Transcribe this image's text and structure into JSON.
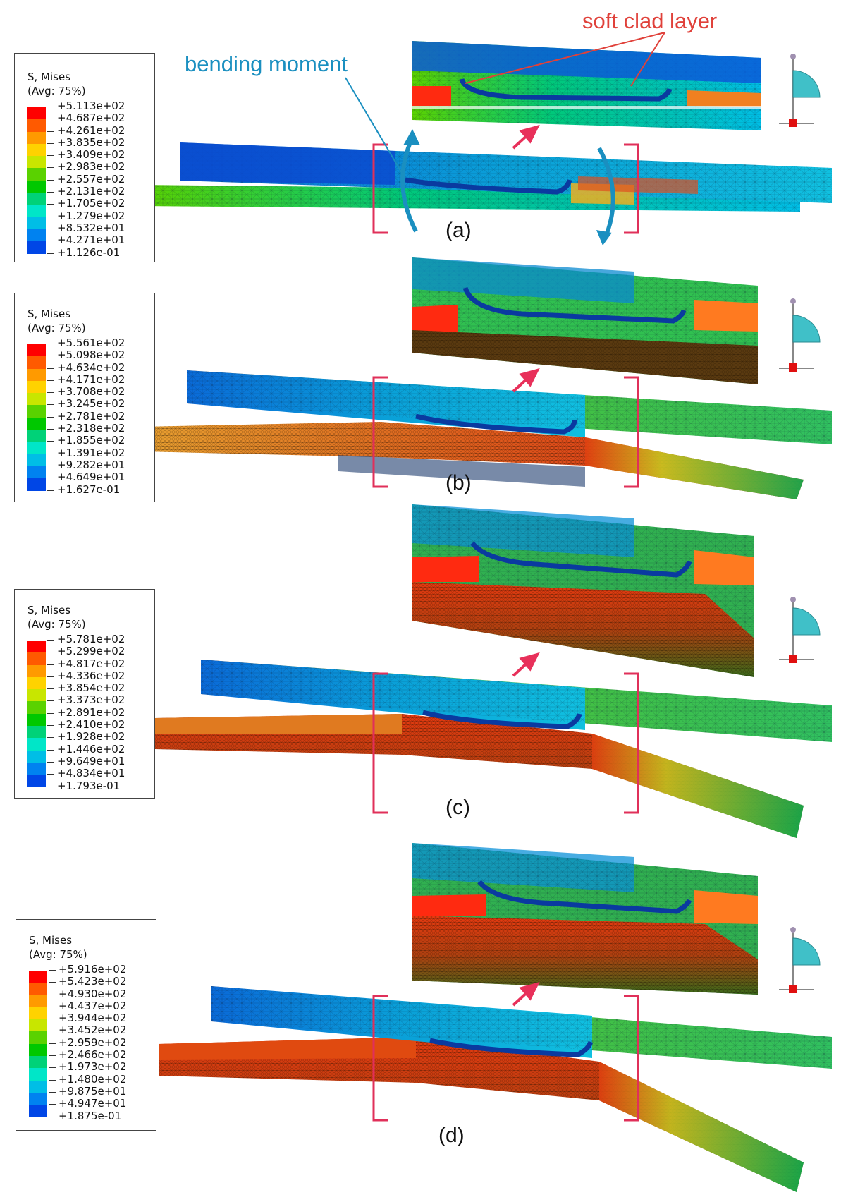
{
  "annotations": {
    "bending_moment": {
      "text": "bending moment",
      "color": "#1a8fc0"
    },
    "soft_clad_layer": {
      "text": "soft clad layer",
      "color": "#e0413a"
    }
  },
  "palette": [
    "#ff0000",
    "#ff5a00",
    "#ff9a00",
    "#ffd200",
    "#c8e600",
    "#5ad200",
    "#00c800",
    "#00d278",
    "#00e6c8",
    "#00bee6",
    "#0082f0",
    "#0046e6",
    "#0000e6"
  ],
  "panels": [
    {
      "label": "(a)",
      "legend": {
        "title": "S, Mises",
        "avg": "(Avg: 75%)",
        "values": [
          "+5.113e+02",
          "+4.687e+02",
          "+4.261e+02",
          "+3.835e+02",
          "+3.409e+02",
          "+2.983e+02",
          "+2.557e+02",
          "+2.131e+02",
          "+1.705e+02",
          "+1.279e+02",
          "+8.532e+01",
          "+4.271e+01",
          "+1.126e-01"
        ]
      }
    },
    {
      "label": "(b)",
      "legend": {
        "title": "S, Mises",
        "avg": "(Avg: 75%)",
        "values": [
          "+5.561e+02",
          "+5.098e+02",
          "+4.634e+02",
          "+4.171e+02",
          "+3.708e+02",
          "+3.245e+02",
          "+2.781e+02",
          "+2.318e+02",
          "+1.855e+02",
          "+1.391e+02",
          "+9.282e+01",
          "+4.649e+01",
          "+1.627e-01"
        ]
      }
    },
    {
      "label": "(c)",
      "legend": {
        "title": "S, Mises",
        "avg": "(Avg: 75%)",
        "values": [
          "+5.781e+02",
          "+5.299e+02",
          "+4.817e+02",
          "+4.336e+02",
          "+3.854e+02",
          "+3.373e+02",
          "+2.891e+02",
          "+2.410e+02",
          "+1.928e+02",
          "+1.446e+02",
          "+9.649e+01",
          "+4.834e+01",
          "+1.793e-01"
        ]
      }
    },
    {
      "label": "(d)",
      "legend": {
        "title": "S, Mises",
        "avg": "(Avg: 75%)",
        "values": [
          "+5.916e+02",
          "+5.423e+02",
          "+4.930e+02",
          "+4.437e+02",
          "+3.944e+02",
          "+3.452e+02",
          "+2.959e+02",
          "+2.466e+02",
          "+1.973e+02",
          "+1.480e+02",
          "+9.875e+01",
          "+4.947e+01",
          "+1.875e-01"
        ]
      }
    }
  ]
}
